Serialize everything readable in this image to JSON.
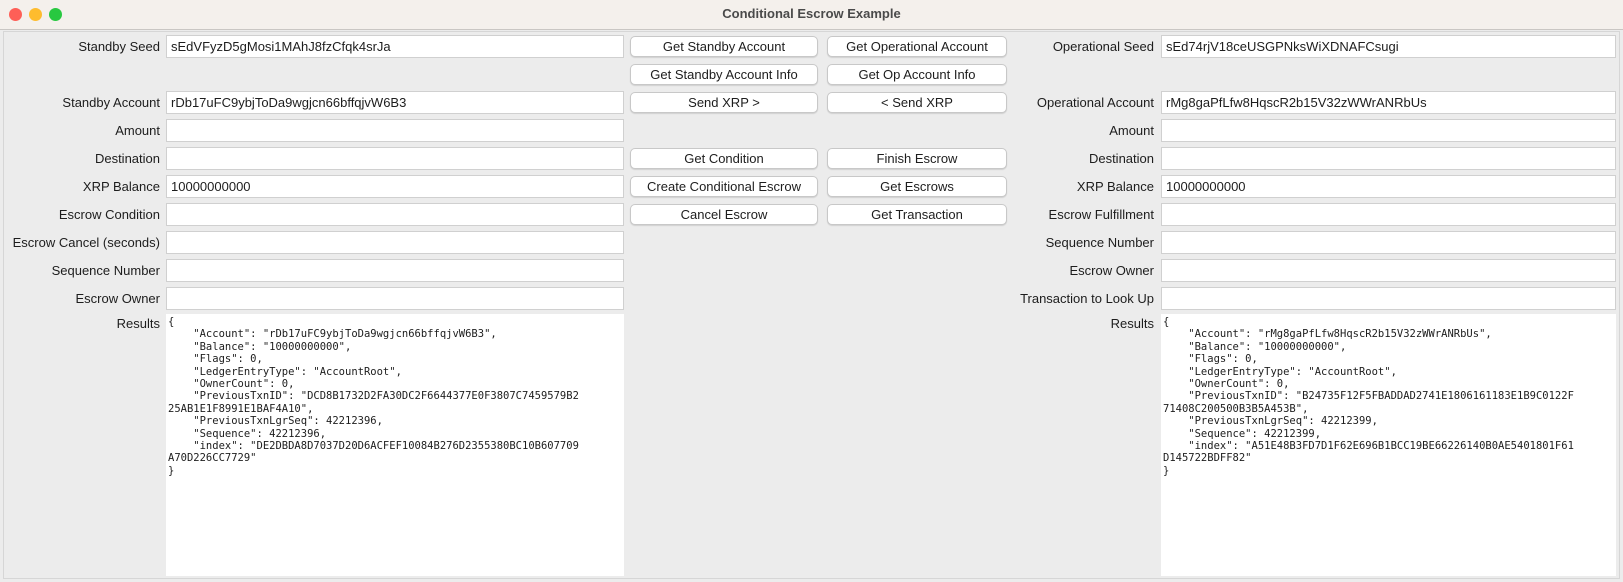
{
  "window": {
    "title": "Conditional Escrow Example"
  },
  "left": {
    "rows": [
      {
        "label": "Standby Seed",
        "value": "sEdVFyzD5gMosi1MAhJ8fzCfqk4srJa"
      },
      {
        "label": "Standby Account",
        "value": "rDb17uFC9ybjToDa9wgjcn66bffqjvW6B3"
      },
      {
        "label": "Amount",
        "value": ""
      },
      {
        "label": "Destination",
        "value": ""
      },
      {
        "label": "XRP Balance",
        "value": "10000000000"
      },
      {
        "label": "Escrow Condition",
        "value": ""
      },
      {
        "label": "Escrow Cancel (seconds)",
        "value": ""
      },
      {
        "label": "Sequence Number",
        "value": ""
      },
      {
        "label": "Escrow Owner",
        "value": ""
      }
    ],
    "results_label": "Results",
    "results": "{\n    \"Account\": \"rDb17uFC9ybjToDa9wgjcn66bffqjvW6B3\",\n    \"Balance\": \"10000000000\",\n    \"Flags\": 0,\n    \"LedgerEntryType\": \"AccountRoot\",\n    \"OwnerCount\": 0,\n    \"PreviousTxnID\": \"DCD8B1732D2FA30DC2F6644377E0F3807C7459579B2\n25AB1E1F8991E1BAF4A10\",\n    \"PreviousTxnLgrSeq\": 42212396,\n    \"Sequence\": 42212396,\n    \"index\": \"DE2DBDA8D7037D20D6ACFEF10084B276D2355380BC10B607709\nA70D226CC7729\"\n}"
  },
  "right": {
    "rows": [
      {
        "label": "Operational Seed",
        "value": "sEd74rjV18ceUSGPNksWiXDNAFCsugi"
      },
      {
        "label": "Operational Account",
        "value": "rMg8gaPfLfw8HqscR2b15V32zWWrANRbUs"
      },
      {
        "label": "Amount",
        "value": ""
      },
      {
        "label": "Destination",
        "value": ""
      },
      {
        "label": "XRP Balance",
        "value": "10000000000"
      },
      {
        "label": "Escrow Fulfillment",
        "value": ""
      },
      {
        "label": "Sequence Number",
        "value": ""
      },
      {
        "label": "Escrow Owner",
        "value": ""
      },
      {
        "label": "Transaction to Look Up",
        "value": ""
      }
    ],
    "results_label": "Results",
    "results": "{\n    \"Account\": \"rMg8gaPfLfw8HqscR2b15V32zWWrANRbUs\",\n    \"Balance\": \"10000000000\",\n    \"Flags\": 0,\n    \"LedgerEntryType\": \"AccountRoot\",\n    \"OwnerCount\": 0,\n    \"PreviousTxnID\": \"B24735F12F5FBADDAD2741E1806161183E1B9C0122F\n71408C200500B3B5A453B\",\n    \"PreviousTxnLgrSeq\": 42212399,\n    \"Sequence\": 42212399,\n    \"index\": \"A51E48B3FD7D1F62E696B1BCC19BE66226140B0AE5401801F61\nD145722BDFF82\"\n}"
  },
  "buttons": {
    "get_standby_account": "Get Standby Account",
    "get_operational_account": "Get Operational Account",
    "get_standby_account_info": "Get Standby Account Info",
    "get_op_account_info": "Get Op Account Info",
    "send_xrp_right": "Send XRP >",
    "send_xrp_left": "< Send XRP",
    "get_condition": "Get Condition",
    "finish_escrow": "Finish Escrow",
    "create_conditional_escrow": "Create Conditional Escrow",
    "get_escrows": "Get Escrows",
    "cancel_escrow": "Cancel Escrow",
    "get_transaction": "Get Transaction"
  }
}
